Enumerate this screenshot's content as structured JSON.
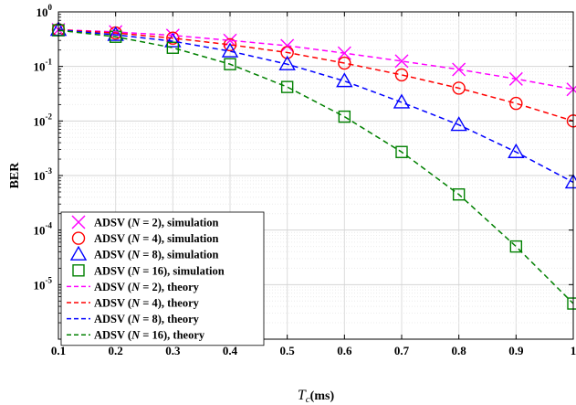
{
  "chart_data": {
    "type": "line",
    "title": "",
    "xlabel": {
      "symbol": "T",
      "subscript": "c",
      "unit": "(ms)"
    },
    "ylabel": "BER",
    "x": [
      0.1,
      0.2,
      0.3,
      0.4,
      0.5,
      0.6,
      0.7,
      0.8,
      0.9,
      1.0
    ],
    "x_ticks": [
      0.1,
      0.2,
      0.3,
      0.4,
      0.5,
      0.6,
      0.7,
      0.8,
      0.9,
      1.0
    ],
    "x_tick_labels": [
      "0.1",
      "0.2",
      "0.3",
      "0.4",
      "0.5",
      "0.6",
      "0.7",
      "0.8",
      "0.9",
      "1"
    ],
    "xlim": [
      0.1,
      1.0
    ],
    "ylim": [
      1e-06,
      1
    ],
    "yscale": "log",
    "y_ticks": [
      {
        "base": "10",
        "exp": "-5",
        "value": 1e-05
      },
      {
        "base": "10",
        "exp": "-4",
        "value": 0.0001
      },
      {
        "base": "10",
        "exp": "-3",
        "value": 0.001
      },
      {
        "base": "10",
        "exp": "-2",
        "value": 0.01
      },
      {
        "base": "10",
        "exp": "-1",
        "value": 0.1
      },
      {
        "base": "10",
        "exp": "0",
        "value": 1
      }
    ],
    "grid": true,
    "legend_position": "bottom-left",
    "series": [
      {
        "legend": {
          "pre": "ADSV (",
          "var": "N",
          "post": " = 2), simulation"
        },
        "color": "#ff00ff",
        "marker": "x",
        "style": "marker",
        "values": [
          0.47,
          0.43,
          0.37,
          0.3,
          0.24,
          0.175,
          0.125,
          0.088,
          0.059,
          0.038
        ]
      },
      {
        "legend": {
          "pre": "ADSV (",
          "var": "N",
          "post": " = 4), simulation"
        },
        "color": "#ff0000",
        "marker": "circle",
        "style": "marker",
        "values": [
          0.47,
          0.41,
          0.33,
          0.25,
          0.18,
          0.115,
          0.07,
          0.04,
          0.021,
          0.01
        ]
      },
      {
        "legend": {
          "pre": "ADSV (",
          "var": "N",
          "post": " = 8), simulation"
        },
        "color": "#0000ff",
        "marker": "triangle",
        "style": "marker",
        "values": [
          0.47,
          0.38,
          0.29,
          0.19,
          0.11,
          0.054,
          0.022,
          0.0085,
          0.0027,
          0.00075
        ]
      },
      {
        "legend": {
          "pre": "ADSV (",
          "var": "N",
          "post": " = 16), simulation"
        },
        "color": "#008000",
        "marker": "square",
        "style": "marker",
        "values": [
          0.46,
          0.35,
          0.22,
          0.11,
          0.042,
          0.012,
          0.0027,
          0.00045,
          5e-05,
          4.5e-06
        ]
      },
      {
        "legend": {
          "pre": "ADSV (",
          "var": "N",
          "post": " = 2), theory"
        },
        "color": "#ff00ff",
        "style": "dashed",
        "values": [
          0.47,
          0.43,
          0.37,
          0.3,
          0.24,
          0.175,
          0.125,
          0.088,
          0.059,
          0.038
        ]
      },
      {
        "legend": {
          "pre": "ADSV (",
          "var": "N",
          "post": " = 4), theory"
        },
        "color": "#ff0000",
        "style": "dashed",
        "values": [
          0.47,
          0.41,
          0.33,
          0.25,
          0.18,
          0.115,
          0.07,
          0.04,
          0.021,
          0.01
        ]
      },
      {
        "legend": {
          "pre": "ADSV (",
          "var": "N",
          "post": " = 8), theory"
        },
        "color": "#0000ff",
        "style": "dashed",
        "values": [
          0.47,
          0.38,
          0.29,
          0.19,
          0.11,
          0.054,
          0.022,
          0.0085,
          0.0027,
          0.00075
        ]
      },
      {
        "legend": {
          "pre": "ADSV (",
          "var": "N",
          "post": " = 16), theory"
        },
        "color": "#008000",
        "style": "dashed",
        "values": [
          0.46,
          0.35,
          0.22,
          0.11,
          0.042,
          0.012,
          0.0027,
          0.00045,
          5e-05,
          4.5e-06
        ]
      }
    ]
  }
}
